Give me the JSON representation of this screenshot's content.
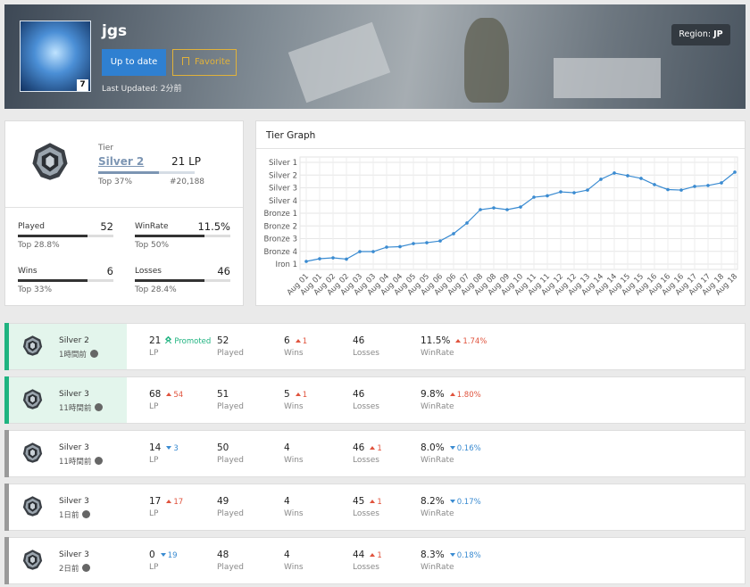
{
  "profile": {
    "name": "jgs",
    "level": 7,
    "buttons": [
      "Up to date",
      "Favorite"
    ],
    "last_updated": "Last Updated: 2分前",
    "region_label": "Region:",
    "region": "JP"
  },
  "summary": {
    "tier_label": "Tier",
    "rank": "Silver 2",
    "lp": "21 LP",
    "top": "Top 37%",
    "position": "#20,188",
    "stats": [
      {
        "label": "Played",
        "value": "52",
        "top": "Top 28.8%"
      },
      {
        "label": "WinRate",
        "value": "11.5%",
        "top": "Top 50%"
      },
      {
        "label": "Wins",
        "value": "6",
        "top": "Top 33%"
      },
      {
        "label": "Losses",
        "value": "46",
        "top": "Top 28.4%"
      }
    ]
  },
  "chart_data": {
    "type": "line",
    "title": "Tier Graph",
    "color": "#3a8bd1",
    "grid": true,
    "categories": [
      "Aug 01",
      "Aug 01",
      "Aug 02",
      "Aug 02",
      "Aug 03",
      "Aug 03",
      "Aug 04",
      "Aug 04",
      "Aug 05",
      "Aug 05",
      "Aug 06",
      "Aug 06",
      "Aug 07",
      "Aug 08",
      "Aug 08",
      "Aug 09",
      "Aug 10",
      "Aug 11",
      "Aug 11",
      "Aug 12",
      "Aug 12",
      "Aug 13",
      "Aug 14",
      "Aug 14",
      "Aug 15",
      "Aug 15",
      "Aug 16",
      "Aug 16",
      "Aug 16",
      "Aug 17",
      "Aug 17",
      "Aug 18",
      "Aug 18"
    ],
    "values": [
      0.21,
      0.42,
      0.49,
      0.39,
      0.98,
      0.98,
      1.33,
      1.37,
      1.61,
      1.68,
      1.82,
      2.39,
      3.23,
      4.28,
      4.42,
      4.28,
      4.49,
      5.26,
      5.37,
      5.68,
      5.61,
      5.82,
      6.67,
      7.16,
      6.95,
      6.74,
      6.25,
      5.86,
      5.82,
      6.11,
      6.18,
      6.39,
      7.23
    ],
    "ylim": [
      0,
      8
    ],
    "yticks": [
      {
        "value": 0,
        "label": "Iron 1"
      },
      {
        "value": 1,
        "label": "Bronze 4"
      },
      {
        "value": 2,
        "label": "Bronze 3"
      },
      {
        "value": 3,
        "label": "Bronze 2"
      },
      {
        "value": 4,
        "label": "Bronze 1"
      },
      {
        "value": 5,
        "label": "Silver 4"
      },
      {
        "value": 6,
        "label": "Silver 3"
      },
      {
        "value": 7,
        "label": "Silver 2"
      },
      {
        "value": 8,
        "label": "Silver 1"
      }
    ]
  },
  "history_labels": {
    "lp": "LP",
    "played": "Played",
    "wins": "Wins",
    "losses": "Losses",
    "winrate": "WinRate"
  },
  "history": [
    {
      "tier": "Silver 2",
      "time": "1時間前",
      "lp": "21",
      "lp_change": {
        "text": "Promoted",
        "trend": "promoted"
      },
      "played": "52",
      "wins": "6",
      "wins_change": {
        "text": "1",
        "trend": "up"
      },
      "losses": "46",
      "winrate": "11.5%",
      "winrate_change": {
        "text": "1.74%",
        "trend": "up"
      },
      "highlight": true
    },
    {
      "tier": "Silver 3",
      "time": "11時間前",
      "lp": "68",
      "lp_change": {
        "text": "54",
        "trend": "up"
      },
      "played": "51",
      "wins": "5",
      "wins_change": {
        "text": "1",
        "trend": "up"
      },
      "losses": "46",
      "winrate": "9.8%",
      "winrate_change": {
        "text": "1.80%",
        "trend": "up"
      },
      "highlight": true
    },
    {
      "tier": "Silver 3",
      "time": "11時間前",
      "lp": "14",
      "lp_change": {
        "text": "3",
        "trend": "down"
      },
      "played": "50",
      "wins": "4",
      "losses": "46",
      "losses_change": {
        "text": "1",
        "trend": "up"
      },
      "winrate": "8.0%",
      "winrate_change": {
        "text": "0.16%",
        "trend": "down"
      },
      "highlight": false
    },
    {
      "tier": "Silver 3",
      "time": "1日前",
      "lp": "17",
      "lp_change": {
        "text": "17",
        "trend": "up"
      },
      "played": "49",
      "wins": "4",
      "losses": "45",
      "losses_change": {
        "text": "1",
        "trend": "up"
      },
      "winrate": "8.2%",
      "winrate_change": {
        "text": "0.17%",
        "trend": "down"
      },
      "highlight": false
    },
    {
      "tier": "Silver 3",
      "time": "2日前",
      "lp": "0",
      "lp_change": {
        "text": "19",
        "trend": "down"
      },
      "played": "48",
      "wins": "4",
      "losses": "44",
      "losses_change": {
        "text": "1",
        "trend": "up"
      },
      "winrate": "8.3%",
      "winrate_change": {
        "text": "0.18%",
        "trend": "down"
      },
      "highlight": false
    }
  ]
}
